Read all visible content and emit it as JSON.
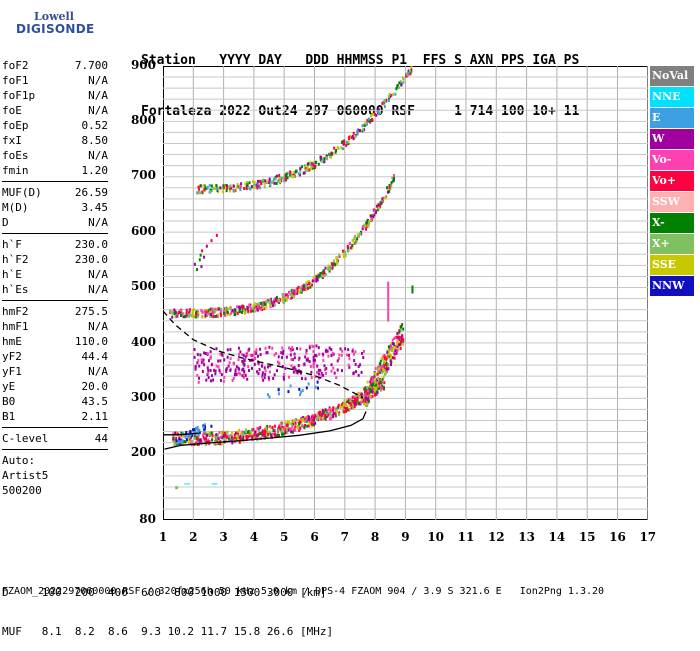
{
  "logo": {
    "line1": "Lowell",
    "line2": "DIGISONDE"
  },
  "header": {
    "row1": "Station   YYYY DAY   DDD HHMMSS P1  FFS S AXN PPS IGA PS",
    "row2": "Fortaleza 2022 Out24 297 060000 RSF     1 714 100 10+ 11"
  },
  "params": [
    {
      "key": "foF2",
      "val": "7.700"
    },
    {
      "key": "foF1",
      "val": "N/A"
    },
    {
      "key": "foF1p",
      "val": "N/A"
    },
    {
      "key": "foE",
      "val": "N/A"
    },
    {
      "key": "foEp",
      "val": "0.52"
    },
    {
      "key": "fxI",
      "val": "8.50"
    },
    {
      "key": "foEs",
      "val": "N/A"
    },
    {
      "key": "fmin",
      "val": "1.20"
    },
    {
      "sep": true
    },
    {
      "key": "MUF(D)",
      "val": "26.59"
    },
    {
      "key": "M(D)",
      "val": "3.45"
    },
    {
      "key": "D",
      "val": "N/A"
    },
    {
      "sep": true
    },
    {
      "key": "h`F",
      "val": "230.0"
    },
    {
      "key": "h`F2",
      "val": "230.0"
    },
    {
      "key": "h`E",
      "val": "N/A"
    },
    {
      "key": "h`Es",
      "val": "N/A"
    },
    {
      "sep": true
    },
    {
      "key": "hmF2",
      "val": "275.5"
    },
    {
      "key": "hmF1",
      "val": "N/A"
    },
    {
      "key": "hmE",
      "val": "110.0"
    },
    {
      "key": "yF2",
      "val": "44.4"
    },
    {
      "key": "yF1",
      "val": "N/A"
    },
    {
      "key": "yE",
      "val": "20.0"
    },
    {
      "key": "B0",
      "val": "43.5"
    },
    {
      "key": "B1",
      "val": "2.11"
    },
    {
      "sep": true
    },
    {
      "key": "C-level",
      "val": "44"
    },
    {
      "sep": true
    },
    {
      "plain": "Auto:"
    },
    {
      "plain": "Artist5"
    },
    {
      "plain": "500200"
    }
  ],
  "legend": [
    {
      "label": "NoVal",
      "color": "#808080"
    },
    {
      "label": "NNE",
      "color": "#00e0ff"
    },
    {
      "label": "E",
      "color": "#3da0e0"
    },
    {
      "label": "W",
      "color": "#a000a0"
    },
    {
      "label": "Vo-",
      "color": "#ff40b0"
    },
    {
      "label": "Vo+",
      "color": "#ff0040"
    },
    {
      "label": "SSW",
      "color": "#ffb0b0"
    },
    {
      "label": "X-",
      "color": "#008000"
    },
    {
      "label": "X+",
      "color": "#80c060"
    },
    {
      "label": "SSE",
      "color": "#c8c800"
    },
    {
      "label": "NNW",
      "color": "#1010c0"
    }
  ],
  "axes": {
    "y_ticks": [
      "900",
      "800",
      "700",
      "600",
      "500",
      "400",
      "300",
      "200",
      "80"
    ],
    "x_ticks": [
      "1",
      "2",
      "3",
      "4",
      "5",
      "6",
      "7",
      "8",
      "9",
      "10",
      "11",
      "12",
      "13",
      "14",
      "15",
      "16",
      "17"
    ]
  },
  "footer": {
    "d_row": "D     100  200  400  600  800 1000 1500 3000 [km]",
    "muf_row": "MUF   8.1  8.2  8.6  9.3 10.2 11.7 15.8 26.6 [MHz]",
    "file_row": "FZAOM_2022297060000.RSF / 320fx256h 50 kHz 5.0 km / DPS-4 FZAOM 904 / 3.9 S 321.6 E   Ion2Png 1.3.20"
  }
}
